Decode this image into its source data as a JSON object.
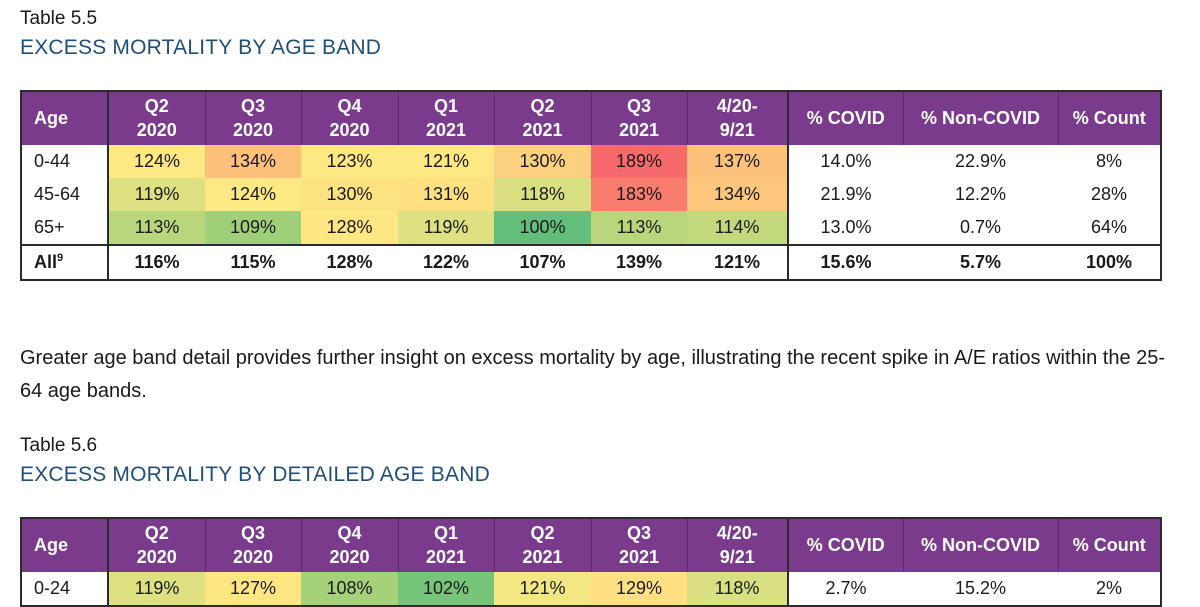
{
  "colors": {
    "header_bg": "#7a3b8c",
    "title_blue": "#1f4e79",
    "border": "#2b2b2b"
  },
  "table_5_5": {
    "label": "Table 5.5",
    "title": "EXCESS MORTALITY BY AGE BAND",
    "headers": {
      "age": "Age",
      "q2_2020_a": "Q2",
      "q2_2020_b": "2020",
      "q3_2020_a": "Q3",
      "q3_2020_b": "2020",
      "q4_2020_a": "Q4",
      "q4_2020_b": "2020",
      "q1_2021_a": "Q1",
      "q1_2021_b": "2021",
      "q2_2021_a": "Q2",
      "q2_2021_b": "2021",
      "q3_2021_a": "Q3",
      "q3_2021_b": "2021",
      "ytd_a": "4/20-",
      "ytd_b": "9/21",
      "covid": "% COVID",
      "noncovid": "% Non-COVID",
      "count": "% Count"
    },
    "rows": [
      {
        "age": "0-44",
        "cells": [
          "124%",
          "134%",
          "123%",
          "121%",
          "130%",
          "189%",
          "137%"
        ],
        "colors": [
          "#fde883",
          "#fcc07a",
          "#fee883",
          "#fee883",
          "#fbd17f",
          "#f8696b",
          "#fcc27b"
        ],
        "covid": "14.0%",
        "noncovid": "22.9%",
        "count": "8%"
      },
      {
        "age": "45-64",
        "cells": [
          "119%",
          "124%",
          "130%",
          "131%",
          "118%",
          "183%",
          "134%"
        ],
        "colors": [
          "#dde181",
          "#fee883",
          "#fde282",
          "#fde082",
          "#d9e081",
          "#f87d6e",
          "#fcc77c"
        ],
        "covid": "21.9%",
        "noncovid": "12.2%",
        "count": "28%"
      },
      {
        "age": "65+",
        "cells": [
          "113%",
          "109%",
          "128%",
          "119%",
          "100%",
          "113%",
          "114%"
        ],
        "colors": [
          "#bad67c",
          "#a0cf79",
          "#fee683",
          "#dde181",
          "#63be7b",
          "#b9d67d",
          "#c3d97e"
        ],
        "covid": "13.0%",
        "noncovid": "0.7%",
        "count": "64%"
      },
      {
        "age": "All",
        "age_sup": "9",
        "cells": [
          "116%",
          "115%",
          "128%",
          "122%",
          "107%",
          "139%",
          "121%"
        ],
        "covid": "15.6%",
        "noncovid": "5.7%",
        "count": "100%"
      }
    ]
  },
  "paragraph": "Greater age band detail provides further insight on excess mortality by age, illustrating the recent spike in A/E ratios within the 25-64 age bands.",
  "table_5_6": {
    "label": "Table 5.6",
    "title": "EXCESS MORTALITY BY DETAILED AGE BAND",
    "headers": {
      "age": "Age",
      "q2_2020_a": "Q2",
      "q2_2020_b": "2020",
      "q3_2020_a": "Q3",
      "q3_2020_b": "2020",
      "q4_2020_a": "Q4",
      "q4_2020_b": "2020",
      "q1_2021_a": "Q1",
      "q1_2021_b": "2021",
      "q2_2021_a": "Q2",
      "q2_2021_b": "2021",
      "q3_2021_a": "Q3",
      "q3_2021_b": "2021",
      "ytd_a": "4/20-",
      "ytd_b": "9/21",
      "covid": "% COVID",
      "noncovid": "% Non-COVID",
      "count": "% Count"
    },
    "rows": [
      {
        "age": "0-24",
        "cells": [
          "119%",
          "127%",
          "108%",
          "102%",
          "121%",
          "129%",
          "118%"
        ],
        "colors": [
          "#dde181",
          "#fee683",
          "#a5d17a",
          "#77c47b",
          "#f3e783",
          "#fee082",
          "#d8e081"
        ],
        "covid": "2.7%",
        "noncovid": "15.2%",
        "count": "2%"
      }
    ]
  }
}
